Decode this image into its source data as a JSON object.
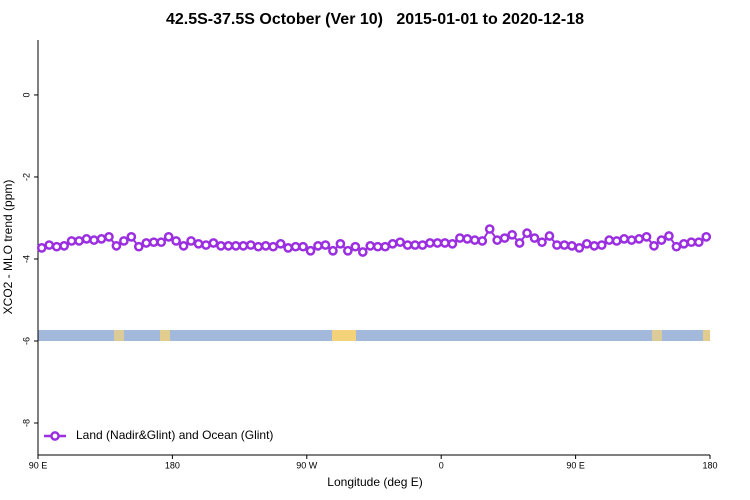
{
  "chart_data": {
    "type": "line",
    "title": "42.5S-37.5S October (Ver 10)   2015-01-01 to 2020-12-18",
    "xlabel": "Longitude (deg E)",
    "ylabel": "XCO2 - MLO trend (ppm)",
    "xlim": [
      90,
      540
    ],
    "ylim": [
      -8.78,
      1.34
    ],
    "xticks": [
      {
        "value": 90,
        "label": "90 E"
      },
      180,
      {
        "value": 270,
        "label": "90 W"
      },
      {
        "value": 360,
        "label": "0"
      },
      {
        "value": 450,
        "label": "90 E"
      },
      {
        "value": 540,
        "label": "180"
      }
    ],
    "yticks": [
      -8,
      -6,
      -4,
      -2,
      0
    ],
    "legend": "bottom-left",
    "x": [
      92.5,
      97.5,
      102.5,
      107.5,
      112.5,
      117.5,
      122.5,
      127.5,
      132.5,
      137.5,
      142.5,
      147.5,
      152.5,
      157.5,
      162.5,
      167.5,
      172.5,
      177.5,
      182.5,
      187.5,
      192.5,
      197.5,
      202.5,
      207.5,
      212.5,
      217.5,
      222.5,
      227.5,
      232.5,
      237.5,
      242.5,
      247.5,
      252.5,
      257.5,
      262.5,
      267.5,
      272.5,
      277.5,
      282.5,
      287.5,
      292.5,
      297.5,
      302.5,
      307.5,
      312.5,
      317.5,
      322.5,
      327.5,
      332.5,
      337.5,
      342.5,
      347.5,
      352.5,
      357.5,
      362.5,
      367.5,
      372.5,
      377.5,
      382.5,
      387.5,
      392.5,
      397.5,
      402.5,
      407.5,
      412.5,
      417.5,
      422.5,
      427.5,
      432.5,
      437.5,
      442.5,
      447.5,
      452.5,
      457.5,
      462.5,
      467.5,
      472.5,
      477.5,
      482.5,
      487.5,
      492.5,
      497.5,
      502.5,
      507.5,
      512.5,
      517.5,
      522.5,
      527.5,
      532.5,
      537.5
    ],
    "series": [
      {
        "name": "Land (Nadir&Glint) and Ocean (Glint)",
        "color": "#9b2fe0",
        "values": [
          -3.73,
          -3.66,
          -3.7,
          -3.68,
          -3.56,
          -3.56,
          -3.51,
          -3.54,
          -3.51,
          -3.46,
          -3.68,
          -3.56,
          -3.46,
          -3.7,
          -3.61,
          -3.59,
          -3.59,
          -3.46,
          -3.56,
          -3.68,
          -3.56,
          -3.63,
          -3.66,
          -3.61,
          -3.68,
          -3.68,
          -3.68,
          -3.68,
          -3.66,
          -3.7,
          -3.68,
          -3.7,
          -3.63,
          -3.73,
          -3.7,
          -3.7,
          -3.8,
          -3.68,
          -3.66,
          -3.8,
          -3.63,
          -3.8,
          -3.7,
          -3.83,
          -3.68,
          -3.7,
          -3.7,
          -3.63,
          -3.59,
          -3.66,
          -3.66,
          -3.66,
          -3.61,
          -3.61,
          -3.61,
          -3.63,
          -3.49,
          -3.51,
          -3.54,
          -3.56,
          -3.27,
          -3.54,
          -3.49,
          -3.41,
          -3.61,
          -3.37,
          -3.49,
          -3.59,
          -3.44,
          -3.66,
          -3.66,
          -3.68,
          -3.73,
          -3.63,
          -3.68,
          -3.66,
          -3.54,
          -3.56,
          -3.51,
          -3.54,
          -3.51,
          -3.46,
          -3.68,
          -3.54,
          -3.44,
          -3.7,
          -3.63,
          -3.59,
          -3.59,
          -3.46
        ]
      }
    ]
  }
}
